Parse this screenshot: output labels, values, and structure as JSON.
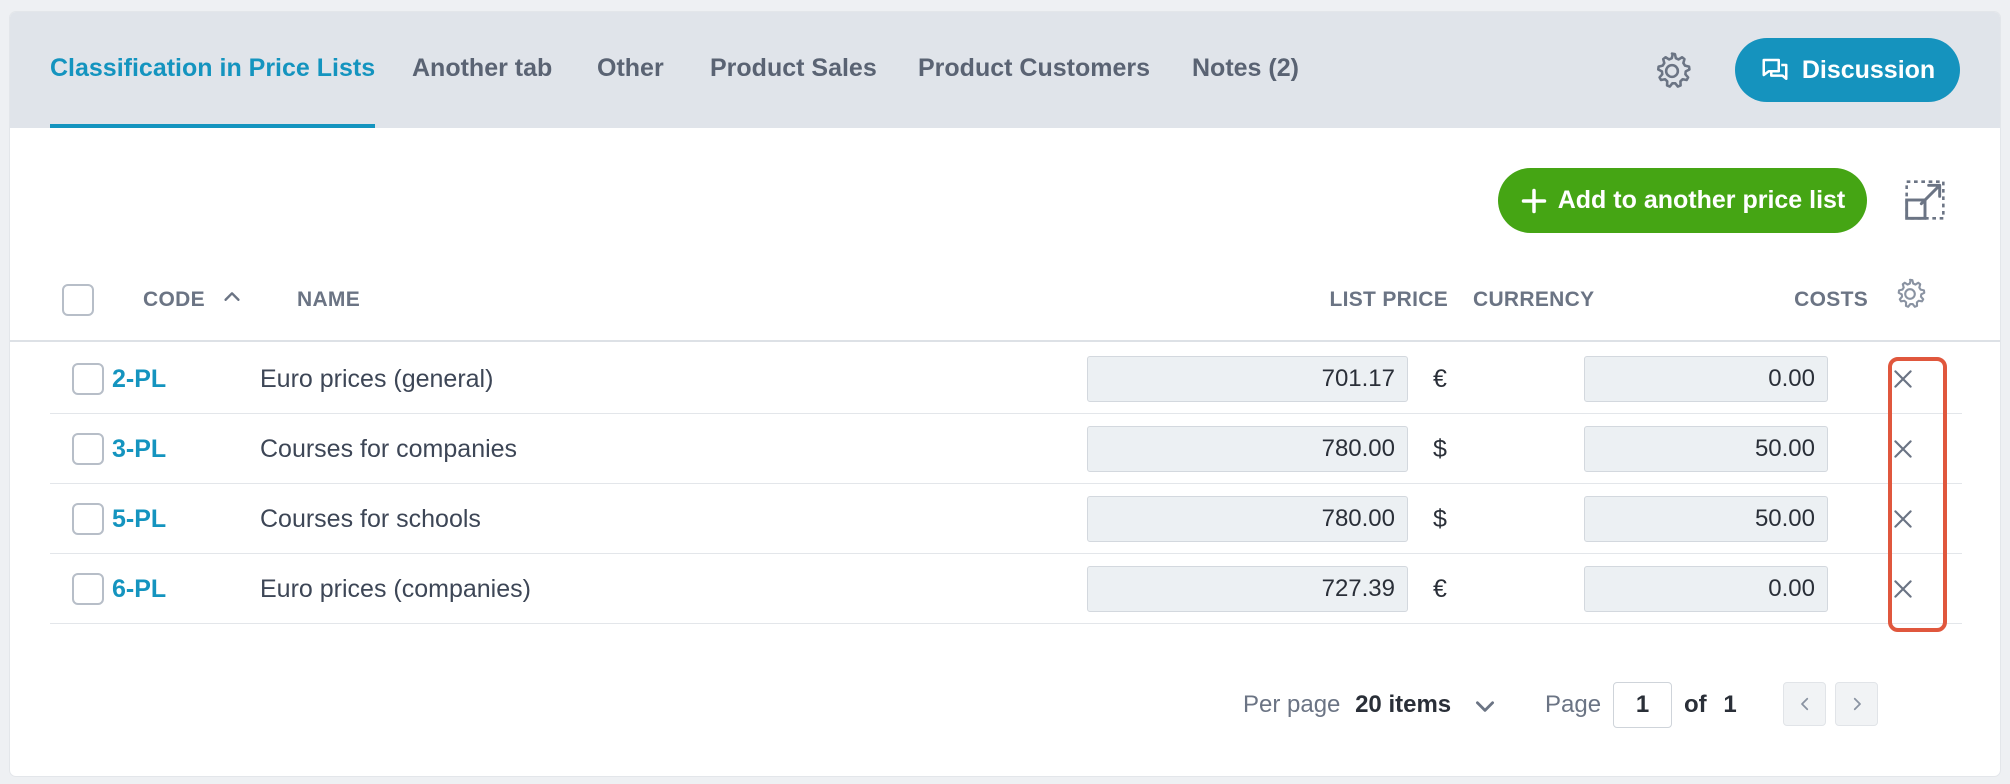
{
  "tabs": [
    {
      "label": "Classification in Price Lists",
      "active": true
    },
    {
      "label": "Another tab",
      "active": false
    },
    {
      "label": "Other",
      "active": false
    },
    {
      "label": "Product Sales",
      "active": false
    },
    {
      "label": "Product Customers",
      "active": false
    },
    {
      "label": "Notes (2)",
      "active": false
    }
  ],
  "header": {
    "discussion_label": "Discussion",
    "settings_icon": "gear-icon",
    "discussion_icon": "chat-icon"
  },
  "toolbar": {
    "add_label": "Add to another price list",
    "expand_icon": "expand-icon"
  },
  "table": {
    "columns": {
      "code": "CODE",
      "name": "NAME",
      "list_price": "LIST PRICE",
      "currency": "CURRENCY",
      "costs": "COSTS"
    },
    "sort": {
      "column": "code",
      "direction": "asc"
    },
    "rows": [
      {
        "code": "2-PL",
        "name": "Euro prices (general)",
        "list_price": "701.17",
        "currency": "€",
        "costs": "0.00"
      },
      {
        "code": "3-PL",
        "name": "Courses for companies",
        "list_price": "780.00",
        "currency": "$",
        "costs": "50.00"
      },
      {
        "code": "5-PL",
        "name": "Courses for schools",
        "list_price": "780.00",
        "currency": "$",
        "costs": "50.00"
      },
      {
        "code": "6-PL",
        "name": "Euro prices (companies)",
        "list_price": "727.39",
        "currency": "€",
        "costs": "0.00"
      }
    ]
  },
  "pagination": {
    "per_page_label": "Per page",
    "per_page_value": "20 items",
    "page_label": "Page",
    "current_page": "1",
    "of_label": "of",
    "total_pages": "1"
  },
  "colors": {
    "accent": "#1494bf",
    "add_button": "#45a514",
    "highlight": "#e0573d"
  }
}
